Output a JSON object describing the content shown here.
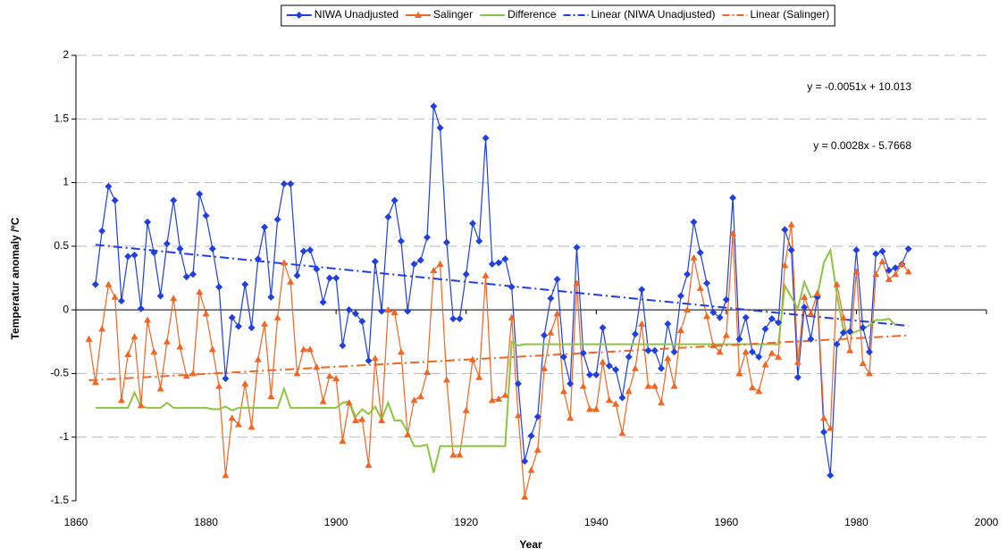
{
  "chart_data": {
    "type": "line",
    "x_label": "Year",
    "y_label": "Temperatur anomaly /ºC",
    "xlim": [
      1860,
      2000
    ],
    "xticks": [
      1860,
      1880,
      1900,
      1920,
      1940,
      1960,
      1980,
      2000
    ],
    "ylim": [
      -1.5,
      2
    ],
    "yticks": [
      -1.5,
      -1,
      -0.5,
      0,
      0.5,
      1,
      1.5,
      2
    ],
    "grid": true,
    "legend": "top",
    "x": [
      1862,
      1863,
      1864,
      1865,
      1866,
      1867,
      1868,
      1869,
      1870,
      1871,
      1872,
      1873,
      1874,
      1875,
      1876,
      1877,
      1878,
      1879,
      1880,
      1881,
      1882,
      1883,
      1884,
      1885,
      1886,
      1887,
      1888,
      1889,
      1890,
      1891,
      1892,
      1893,
      1894,
      1895,
      1896,
      1897,
      1898,
      1899,
      1900,
      1901,
      1902,
      1903,
      1904,
      1905,
      1906,
      1907,
      1908,
      1909,
      1910,
      1911,
      1912,
      1913,
      1914,
      1915,
      1916,
      1917,
      1918,
      1919,
      1920,
      1921,
      1922,
      1923,
      1924,
      1925,
      1926,
      1927,
      1928,
      1929,
      1930,
      1931,
      1932,
      1933,
      1934,
      1935,
      1936,
      1937,
      1938,
      1939,
      1940,
      1941,
      1942,
      1943,
      1944,
      1945,
      1946,
      1947,
      1948,
      1949,
      1950,
      1951,
      1952,
      1953,
      1954,
      1955,
      1956,
      1957,
      1958,
      1959,
      1960,
      1961,
      1962,
      1963,
      1964,
      1965,
      1966,
      1967,
      1968,
      1969,
      1970,
      1971,
      1972,
      1973,
      1974,
      1975,
      1976,
      1977,
      1978,
      1979,
      1980,
      1981,
      1982,
      1983,
      1984,
      1985,
      1986,
      1987,
      1988,
      1989
    ],
    "series": [
      {
        "name": "NIWA Unadjusted",
        "color": "#1f3fe0",
        "marker": "diamond",
        "values": [
          null,
          0.2,
          0.62,
          0.97,
          0.86,
          0.07,
          0.42,
          0.43,
          0.01,
          0.69,
          0.45,
          0.11,
          0.52,
          0.86,
          0.48,
          0.26,
          0.28,
          0.91,
          0.74,
          0.48,
          0.18,
          -0.54,
          -0.06,
          -0.13,
          0.2,
          -0.14,
          0.4,
          0.65,
          0.1,
          0.71,
          0.99,
          0.99,
          0.27,
          0.46,
          0.47,
          0.32,
          0.06,
          0.25,
          0.25,
          -0.28,
          0.0,
          -0.03,
          -0.09,
          -0.4,
          0.38,
          -0.01,
          0.73,
          0.86,
          0.54,
          -0.01,
          0.36,
          0.39,
          0.57,
          1.6,
          1.43,
          0.53,
          -0.07,
          -0.07,
          0.28,
          0.68,
          0.54,
          1.35,
          0.36,
          0.37,
          0.4,
          0.18,
          -0.58,
          -1.19,
          -0.99,
          -0.84,
          -0.2,
          0.09,
          0.24,
          -0.37,
          -0.58,
          0.49,
          -0.34,
          -0.51,
          -0.51,
          -0.14,
          -0.44,
          -0.47,
          -0.69,
          -0.37,
          -0.19,
          0.16,
          -0.32,
          -0.32,
          -0.46,
          -0.11,
          -0.33,
          0.11,
          0.28,
          0.69,
          0.45,
          0.21,
          -0.02,
          -0.06,
          0.08,
          0.88,
          -0.23,
          -0.06,
          -0.33,
          -0.37,
          -0.15,
          -0.07,
          -0.1,
          0.63,
          0.47,
          -0.53,
          0.02,
          -0.23,
          0.1,
          -0.96,
          -1.3,
          -0.27,
          -0.18,
          -0.17,
          0.47,
          -0.14,
          -0.33,
          0.44,
          0.46,
          0.31,
          0.33,
          0.36,
          0.48,
          null
        ]
      },
      {
        "name": "Salinger",
        "color": "#f26522",
        "marker": "triangle",
        "values": [
          -0.23,
          -0.57,
          -0.15,
          0.2,
          0.1,
          -0.71,
          -0.35,
          -0.21,
          -0.75,
          -0.08,
          -0.33,
          -0.62,
          -0.25,
          0.09,
          -0.29,
          -0.52,
          -0.5,
          0.14,
          -0.03,
          -0.31,
          -0.6,
          -1.3,
          -0.85,
          -0.9,
          -0.58,
          -0.92,
          -0.39,
          -0.11,
          -0.68,
          -0.06,
          0.37,
          0.22,
          -0.5,
          -0.31,
          -0.31,
          -0.45,
          -0.72,
          -0.52,
          -0.54,
          -1.03,
          -0.73,
          -0.87,
          -0.86,
          -1.22,
          -0.38,
          -0.87,
          0.0,
          -0.02,
          -0.33,
          -0.98,
          -0.71,
          -0.68,
          -0.49,
          0.31,
          0.36,
          -0.55,
          -1.14,
          -1.14,
          -0.79,
          -0.39,
          -0.53,
          0.27,
          -0.71,
          -0.7,
          -0.67,
          -0.06,
          -0.83,
          -1.47,
          -1.26,
          -1.1,
          -0.46,
          -0.18,
          -0.03,
          -0.64,
          -0.85,
          0.21,
          -0.6,
          -0.78,
          -0.78,
          -0.41,
          -0.71,
          -0.74,
          -0.97,
          -0.64,
          -0.46,
          -0.11,
          -0.6,
          -0.6,
          -0.73,
          -0.38,
          -0.6,
          -0.16,
          0.0,
          0.41,
          0.17,
          -0.05,
          -0.28,
          -0.33,
          -0.2,
          0.6,
          -0.5,
          -0.33,
          -0.61,
          -0.64,
          -0.43,
          -0.34,
          -0.37,
          0.35,
          0.67,
          -0.41,
          0.1,
          -0.03,
          0.13,
          -0.85,
          -0.93,
          0.2,
          -0.06,
          -0.32,
          0.3,
          -0.42,
          -0.5,
          0.28,
          0.38,
          0.24,
          0.28,
          0.36,
          0.3,
          null
        ]
      },
      {
        "name": "Difference",
        "color": "#8cc63f",
        "marker": "none",
        "values": [
          null,
          -0.77,
          -0.77,
          -0.77,
          -0.77,
          -0.77,
          -0.77,
          -0.65,
          -0.76,
          -0.77,
          -0.77,
          -0.77,
          -0.73,
          -0.77,
          -0.77,
          -0.77,
          -0.77,
          -0.77,
          -0.77,
          -0.78,
          -0.78,
          -0.76,
          -0.79,
          -0.77,
          -0.77,
          -0.77,
          -0.77,
          -0.77,
          -0.77,
          -0.77,
          -0.62,
          -0.77,
          -0.77,
          -0.77,
          -0.77,
          -0.77,
          -0.77,
          -0.77,
          -0.77,
          -0.73,
          -0.72,
          -0.84,
          -0.78,
          -0.82,
          -0.76,
          -0.86,
          -0.73,
          -0.87,
          -0.87,
          -0.96,
          -1.07,
          -1.07,
          -1.06,
          -1.28,
          -1.07,
          -1.07,
          -1.07,
          -1.07,
          -1.07,
          -1.07,
          -1.07,
          -1.07,
          -1.07,
          -1.07,
          -1.07,
          -0.25,
          -0.28,
          -0.27,
          -0.27,
          -0.27,
          -0.27,
          -0.27,
          -0.27,
          -0.27,
          -0.27,
          -0.27,
          -0.27,
          -0.27,
          -0.27,
          -0.27,
          -0.27,
          -0.27,
          -0.27,
          -0.27,
          -0.27,
          -0.27,
          -0.27,
          -0.27,
          -0.27,
          -0.27,
          -0.27,
          -0.27,
          -0.27,
          -0.27,
          -0.27,
          -0.27,
          -0.27,
          -0.27,
          -0.27,
          -0.27,
          -0.27,
          -0.27,
          -0.27,
          -0.27,
          -0.27,
          -0.27,
          -0.27,
          0.19,
          0.1,
          0.01,
          0.22,
          0.1,
          0.11,
          0.37,
          0.47,
          0.12,
          -0.15,
          -0.19,
          -0.17,
          -0.15,
          -0.12,
          -0.08,
          -0.08,
          -0.07,
          -0.12,
          null,
          null,
          null
        ]
      }
    ],
    "trendlines": [
      {
        "name": "Linear (NIWA Unadjusted)",
        "series": 0,
        "color": "#1f3fe0",
        "slope": -0.0051,
        "intercept": 10.013,
        "label": "y = -0.0051x + 10.013"
      },
      {
        "name": "Linear (Salinger)",
        "series": 1,
        "color": "#f26522",
        "slope": 0.0028,
        "intercept": -5.7668,
        "label": "y = 0.0028x - 5.7668"
      }
    ]
  }
}
